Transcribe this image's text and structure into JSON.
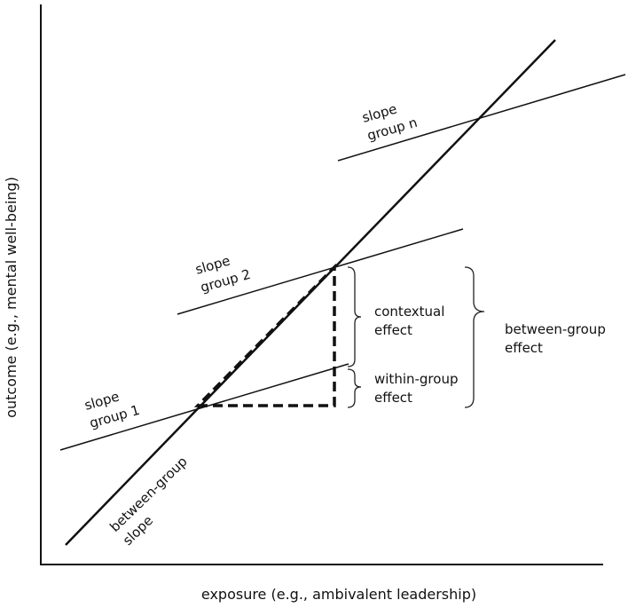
{
  "axes": {
    "x_label": "exposure (e.g., ambivalent leadership)",
    "y_label": "outcome (e.g., mental well-being)"
  },
  "lines": {
    "between_group_slope": "between-group\nslope",
    "group_1": "slope\ngroup 1",
    "group_2": "slope\ngroup 2",
    "group_n": "slope\ngroup n"
  },
  "braces": {
    "contextual": "contextual\neffect",
    "within_group": "within-group\neffect",
    "between_group": "between-group\neffect"
  }
}
